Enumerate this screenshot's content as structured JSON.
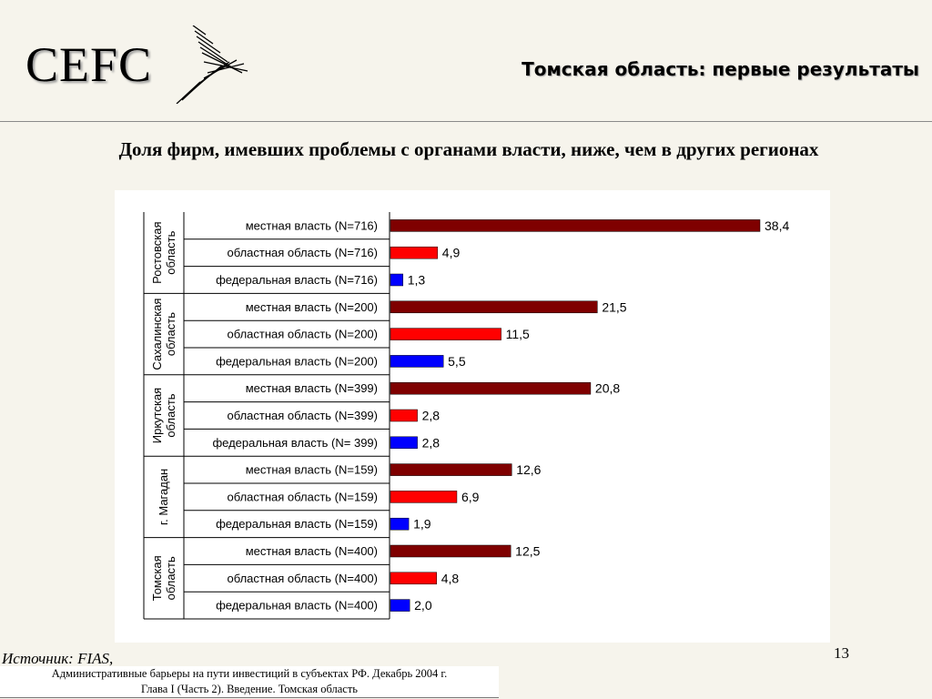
{
  "header": {
    "logo_text": "CEFC",
    "title": "Томская область: первые результаты"
  },
  "subtitle": "Доля фирм, имевших проблемы с органами власти, ниже, чем в других регионах",
  "chart_data": {
    "type": "bar",
    "orientation": "horizontal",
    "grid": false,
    "legend": "none",
    "groups": [
      {
        "name": "Ростовская область",
        "bars": [
          {
            "label": "местная власть (N=716)",
            "value": 38.4,
            "value_label": "38,4",
            "kind": "local"
          },
          {
            "label": "областная область (N=716)",
            "value": 4.9,
            "value_label": "4,9",
            "kind": "regional"
          },
          {
            "label": "федеральная власть (N=716)",
            "value": 1.3,
            "value_label": "1,3",
            "kind": "federal"
          }
        ]
      },
      {
        "name": "Сахалинская область",
        "bars": [
          {
            "label": "местная власть (N=200)",
            "value": 21.5,
            "value_label": "21,5",
            "kind": "local"
          },
          {
            "label": "областная область (N=200)",
            "value": 11.5,
            "value_label": "11,5",
            "kind": "regional"
          },
          {
            "label": "федеральная власть (N=200)",
            "value": 5.5,
            "value_label": "5,5",
            "kind": "federal"
          }
        ]
      },
      {
        "name": "Иркутская область",
        "bars": [
          {
            "label": "местная власть (N=399)",
            "value": 20.8,
            "value_label": "20,8",
            "kind": "local"
          },
          {
            "label": "областная область (N=399)",
            "value": 2.8,
            "value_label": "2,8",
            "kind": "regional"
          },
          {
            "label": "федеральная власть (N= 399)",
            "value": 2.8,
            "value_label": "2,8",
            "kind": "federal"
          }
        ]
      },
      {
        "name": "г. Магадан",
        "bars": [
          {
            "label": "местная власть (N=159)",
            "value": 12.6,
            "value_label": "12,6",
            "kind": "local"
          },
          {
            "label": "областная область (N=159)",
            "value": 6.9,
            "value_label": "6,9",
            "kind": "regional"
          },
          {
            "label": "федеральная власть (N=159)",
            "value": 1.9,
            "value_label": "1,9",
            "kind": "federal"
          }
        ]
      },
      {
        "name": "Томская область",
        "bars": [
          {
            "label": "местная власть (N=400)",
            "value": 12.5,
            "value_label": "12,5",
            "kind": "local"
          },
          {
            "label": "областная область (N=400)",
            "value": 4.8,
            "value_label": "4,8",
            "kind": "regional"
          },
          {
            "label": "федеральная власть (N=400)",
            "value": 2.0,
            "value_label": "2,0",
            "kind": "federal"
          }
        ]
      }
    ],
    "colors": {
      "local": "#7f0000",
      "regional": "#ff0000",
      "federal": "#0000ff"
    },
    "xlim": [
      0,
      38.4
    ]
  },
  "footer": {
    "source": "Источник: FIAS,",
    "note_line1": "Административные барьеры на пути инвестиций в субъектах РФ. Декабрь 2004 г.",
    "note_line2": "Глава I (Часть 2). Введение. Томская область",
    "page_number": "13"
  }
}
